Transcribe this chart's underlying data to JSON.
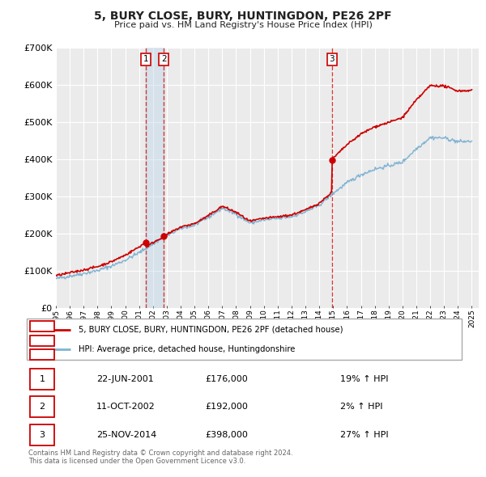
{
  "title": "5, BURY CLOSE, BURY, HUNTINGDON, PE26 2PF",
  "subtitle": "Price paid vs. HM Land Registry's House Price Index (HPI)",
  "ylim": [
    0,
    700000
  ],
  "yticks": [
    0,
    100000,
    200000,
    300000,
    400000,
    500000,
    600000,
    700000
  ],
  "ytick_labels": [
    "£0",
    "£100K",
    "£200K",
    "£300K",
    "£400K",
    "£500K",
    "£600K",
    "£700K"
  ],
  "xlim_start": 1995.0,
  "xlim_end": 2025.5,
  "background_color": "#ffffff",
  "plot_bg_color": "#ebebeb",
  "grid_color": "#ffffff",
  "sale_color": "#cc0000",
  "hpi_color": "#7fb3d3",
  "sale_label": "5, BURY CLOSE, BURY, HUNTINGDON, PE26 2PF (detached house)",
  "hpi_label": "HPI: Average price, detached house, Huntingdonshire",
  "transactions": [
    {
      "id": 1,
      "date_str": "22-JUN-2001",
      "date_x": 2001.47,
      "price": 176000,
      "pct": "19%",
      "direction": "↑"
    },
    {
      "id": 2,
      "date_str": "11-OCT-2002",
      "date_x": 2002.78,
      "price": 192000,
      "pct": "2%",
      "direction": "↑"
    },
    {
      "id": 3,
      "date_str": "25-NOV-2014",
      "date_x": 2014.9,
      "price": 398000,
      "pct": "27%",
      "direction": "↑"
    }
  ],
  "vline_color": "#cc0000",
  "shade_color": "#b8d4e8",
  "shade_alpha": 0.4,
  "footnote_line1": "Contains HM Land Registry data © Crown copyright and database right 2024.",
  "footnote_line2": "This data is licensed under the Open Government Licence v3.0.",
  "hpi_anchors_x": [
    1995,
    1996,
    1997,
    1998,
    1999,
    2000,
    2001,
    2002,
    2003,
    2004,
    2005,
    2006,
    2007,
    2008,
    2009,
    2010,
    2011,
    2012,
    2013,
    2014,
    2015,
    2016,
    2017,
    2018,
    2019,
    2020,
    2021,
    2022,
    2023,
    2024,
    2025
  ],
  "hpi_anchors_y": [
    78000,
    85000,
    92000,
    100000,
    112000,
    128000,
    148000,
    172000,
    193000,
    213000,
    222000,
    243000,
    268000,
    252000,
    228000,
    236000,
    240000,
    245000,
    258000,
    276000,
    308000,
    336000,
    358000,
    373000,
    382000,
    392000,
    428000,
    458000,
    457000,
    447000,
    448000
  ]
}
